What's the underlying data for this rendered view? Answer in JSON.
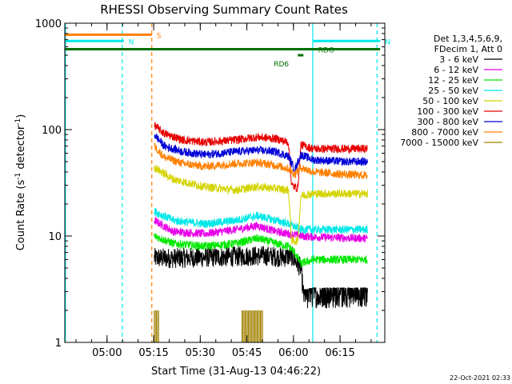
{
  "chart_data": {
    "type": "line",
    "title": "RHESSI Observing Summary Count Rates",
    "xlabel": "Start Time (31-Aug-13 04:46:22)",
    "ylabel_main": "Count Rate (s",
    "ylabel_exp": "-1",
    "ylabel_mid": " detector",
    "ylabel_end": ")",
    "y_scale": "log",
    "ylim": [
      1,
      1000
    ],
    "y_ticks": [
      {
        "value": 1,
        "label": "1"
      },
      {
        "value": 10,
        "label": "10"
      },
      {
        "value": 100,
        "label": "100"
      },
      {
        "value": 1000,
        "label": "1000"
      }
    ],
    "x_range_minutes": [
      0,
      103
    ],
    "x_ticks": [
      {
        "minute": 13.6,
        "label": "05:00"
      },
      {
        "minute": 28.6,
        "label": "05:15"
      },
      {
        "minute": 43.6,
        "label": "05:30"
      },
      {
        "minute": 58.6,
        "label": "05:45"
      },
      {
        "minute": 73.6,
        "label": "06:00"
      },
      {
        "minute": 88.6,
        "label": "06:15"
      }
    ],
    "legend_header": [
      "Det 1,3,4,5,6,9,",
      "FDecim 1, Att 0"
    ],
    "legend_position": "right",
    "series": [
      {
        "name": "3 - 6 keV",
        "color": "#000000",
        "x": [
          28.8,
          35,
          45,
          55,
          60,
          65,
          70,
          73,
          76,
          77,
          80,
          85,
          90,
          97.5
        ],
        "y": [
          6.2,
          6.2,
          6.3,
          6.4,
          6.5,
          6.5,
          6.3,
          6.5,
          5.0,
          2.5,
          2.6,
          2.6,
          2.6,
          2.6
        ]
      },
      {
        "name": "6 - 12 keV",
        "color": "#e800e8",
        "x": [
          28.8,
          35,
          45,
          55,
          62,
          68,
          72,
          76,
          80,
          90,
          97.5
        ],
        "y": [
          14,
          11,
          10.5,
          11.5,
          12.5,
          11,
          10.5,
          10,
          9.8,
          9.6,
          9.5
        ]
      },
      {
        "name": "12 - 25 keV",
        "color": "#00e800",
        "x": [
          28.8,
          35,
          45,
          55,
          62,
          68,
          72,
          74,
          76,
          80,
          90,
          97.5
        ],
        "y": [
          10,
          8.5,
          8,
          8.5,
          9.5,
          8.5,
          8,
          7,
          5.5,
          6,
          6,
          6
        ]
      },
      {
        "name": "25 - 50 keV",
        "color": "#00e8e8",
        "x": [
          28.8,
          35,
          45,
          55,
          62,
          68,
          72,
          76,
          80,
          90,
          97.5
        ],
        "y": [
          17,
          14,
          13,
          14,
          15.5,
          14,
          13,
          11.5,
          11.5,
          11.5,
          11.5
        ]
      },
      {
        "name": "50 - 100 keV",
        "color": "#d4d400",
        "x": [
          28.8,
          35,
          45,
          55,
          62,
          68,
          72,
          73,
          75,
          76,
          80,
          90,
          97.5
        ],
        "y": [
          44,
          34,
          29,
          27,
          29,
          28,
          27,
          9,
          9,
          24,
          25,
          25,
          25
        ]
      },
      {
        "name": "100 - 300 keV",
        "color": "#e80000",
        "x": [
          28.8,
          32,
          38,
          45,
          55,
          62,
          68,
          72,
          73,
          75,
          76,
          80,
          90,
          97.5
        ],
        "y": [
          110,
          92,
          80,
          76,
          80,
          85,
          82,
          76,
          30,
          28,
          72,
          66,
          66,
          66
        ]
      },
      {
        "name": "300 - 800 keV",
        "color": "#0000d8",
        "x": [
          28.8,
          32,
          38,
          45,
          55,
          62,
          68,
          72,
          74,
          76,
          80,
          90,
          97.5
        ],
        "y": [
          90,
          70,
          62,
          58,
          62,
          64,
          62,
          56,
          42,
          58,
          52,
          50,
          50
        ]
      },
      {
        "name": "800 - 7000 keV",
        "color": "#ff8000",
        "x": [
          28.8,
          32,
          38,
          45,
          55,
          62,
          68,
          72,
          74,
          76,
          80,
          90,
          97.5
        ],
        "y": [
          70,
          55,
          48,
          45,
          48,
          49,
          46,
          43,
          38,
          44,
          40,
          38,
          37
        ]
      },
      {
        "name": "7000 - 15000 keV",
        "color": "#a08000",
        "x": [
          28.8,
          30,
          55,
          58,
          60,
          62,
          64
        ],
        "y": [
          2,
          2,
          2,
          2,
          2,
          2,
          2
        ]
      }
    ],
    "flag_bars": [
      {
        "label": "S",
        "color": "#ff8000",
        "x_start": 0,
        "x_end": 28.0,
        "y_level": 780
      },
      {
        "label": "N",
        "color": "#00e8e8",
        "x_start": 0,
        "x_end": 19.0,
        "y_level": 680
      },
      {
        "label": "N",
        "color": "#00e8e8",
        "x_start": 80.0,
        "x_end": 101.5,
        "y_level": 680
      },
      {
        "label": "",
        "color": "#007000",
        "x_start": 0,
        "x_end": 101.5,
        "y_level": 570
      },
      {
        "label": "RDO",
        "color": "#007000",
        "x_start": 77.0,
        "x_end": 80.0,
        "y_level": 570
      },
      {
        "label": "RD6",
        "color": "#007000",
        "x_start": 75.0,
        "x_end": 76.8,
        "y_level": 500
      }
    ],
    "vertical_markers": [
      {
        "minute": 0.2,
        "color": "#00e8e8",
        "style": "solid"
      },
      {
        "minute": 18.5,
        "color": "#00e8e8",
        "style": "dashed"
      },
      {
        "minute": 28.0,
        "color": "#ff8000",
        "style": "dashed"
      },
      {
        "minute": 79.8,
        "color": "#00e8e8",
        "style": "solid"
      },
      {
        "minute": 100.5,
        "color": "#00e8e8",
        "style": "dashed"
      }
    ]
  },
  "footer": {
    "timestamp": "22-Oct-2021 02:33"
  }
}
